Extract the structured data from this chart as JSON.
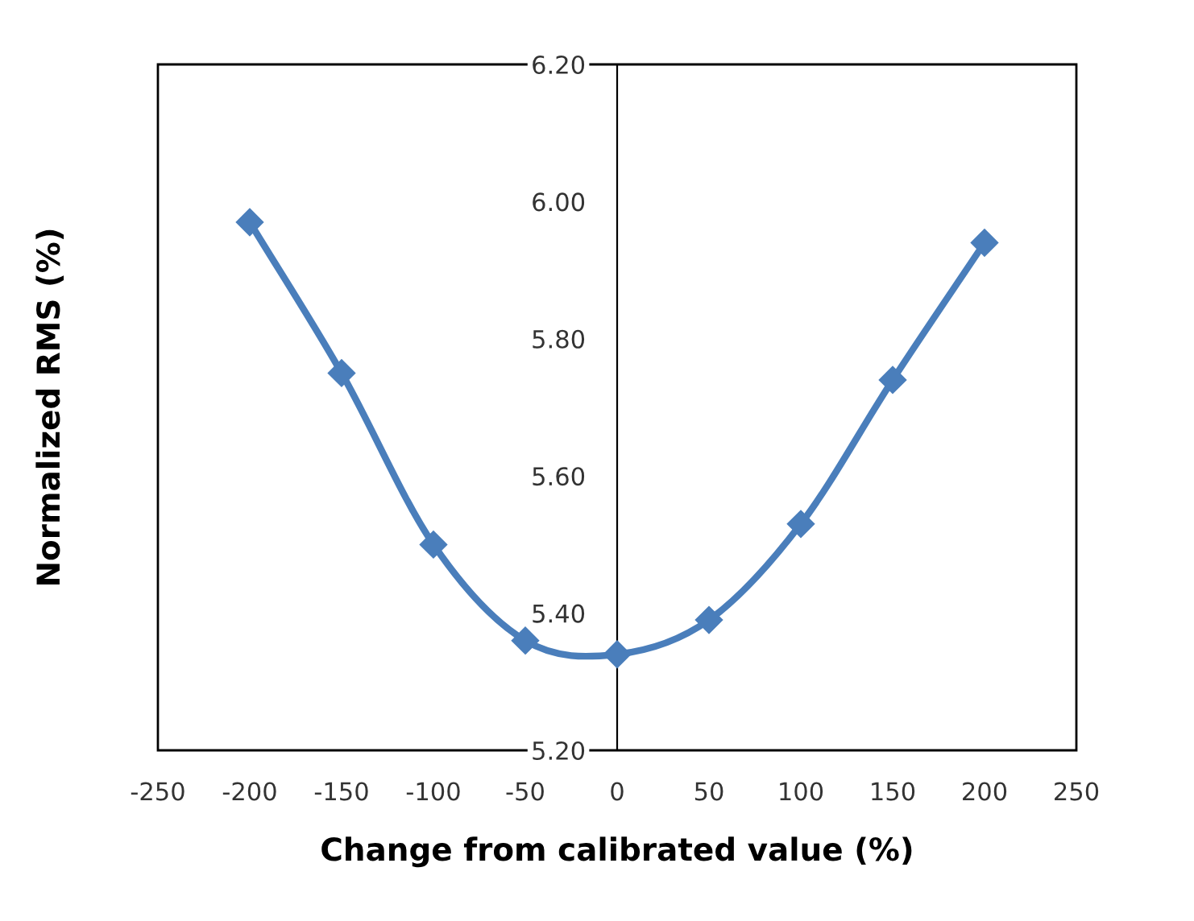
{
  "chart_data": {
    "type": "line",
    "xlabel": "Change from calibrated value (%)",
    "ylabel": "Normalized RMS (%)",
    "x": [
      -200,
      -150,
      -100,
      -50,
      0,
      50,
      100,
      150,
      200
    ],
    "series": [
      {
        "color": "#4a7ebb",
        "values": [
          5.97,
          5.75,
          5.5,
          5.36,
          5.34,
          5.39,
          5.53,
          5.74,
          5.94
        ]
      }
    ],
    "xlim": [
      -250,
      250
    ],
    "xticks": [
      -250,
      -200,
      -150,
      -100,
      -50,
      0,
      50,
      100,
      150,
      200,
      250
    ],
    "ylim": [
      5.2,
      6.2
    ],
    "yticks": [
      {
        "value": 5.2,
        "label": "5.20"
      },
      {
        "value": 5.4,
        "label": "5.40"
      },
      {
        "value": 5.6,
        "label": "5.60"
      },
      {
        "value": 5.8,
        "label": "5.80"
      },
      {
        "value": 6.0,
        "label": "6.00"
      },
      {
        "value": 6.2,
        "label": "6.20"
      }
    ],
    "marker": "diamond",
    "line_style": "solid",
    "grid": false,
    "legend": false
  }
}
